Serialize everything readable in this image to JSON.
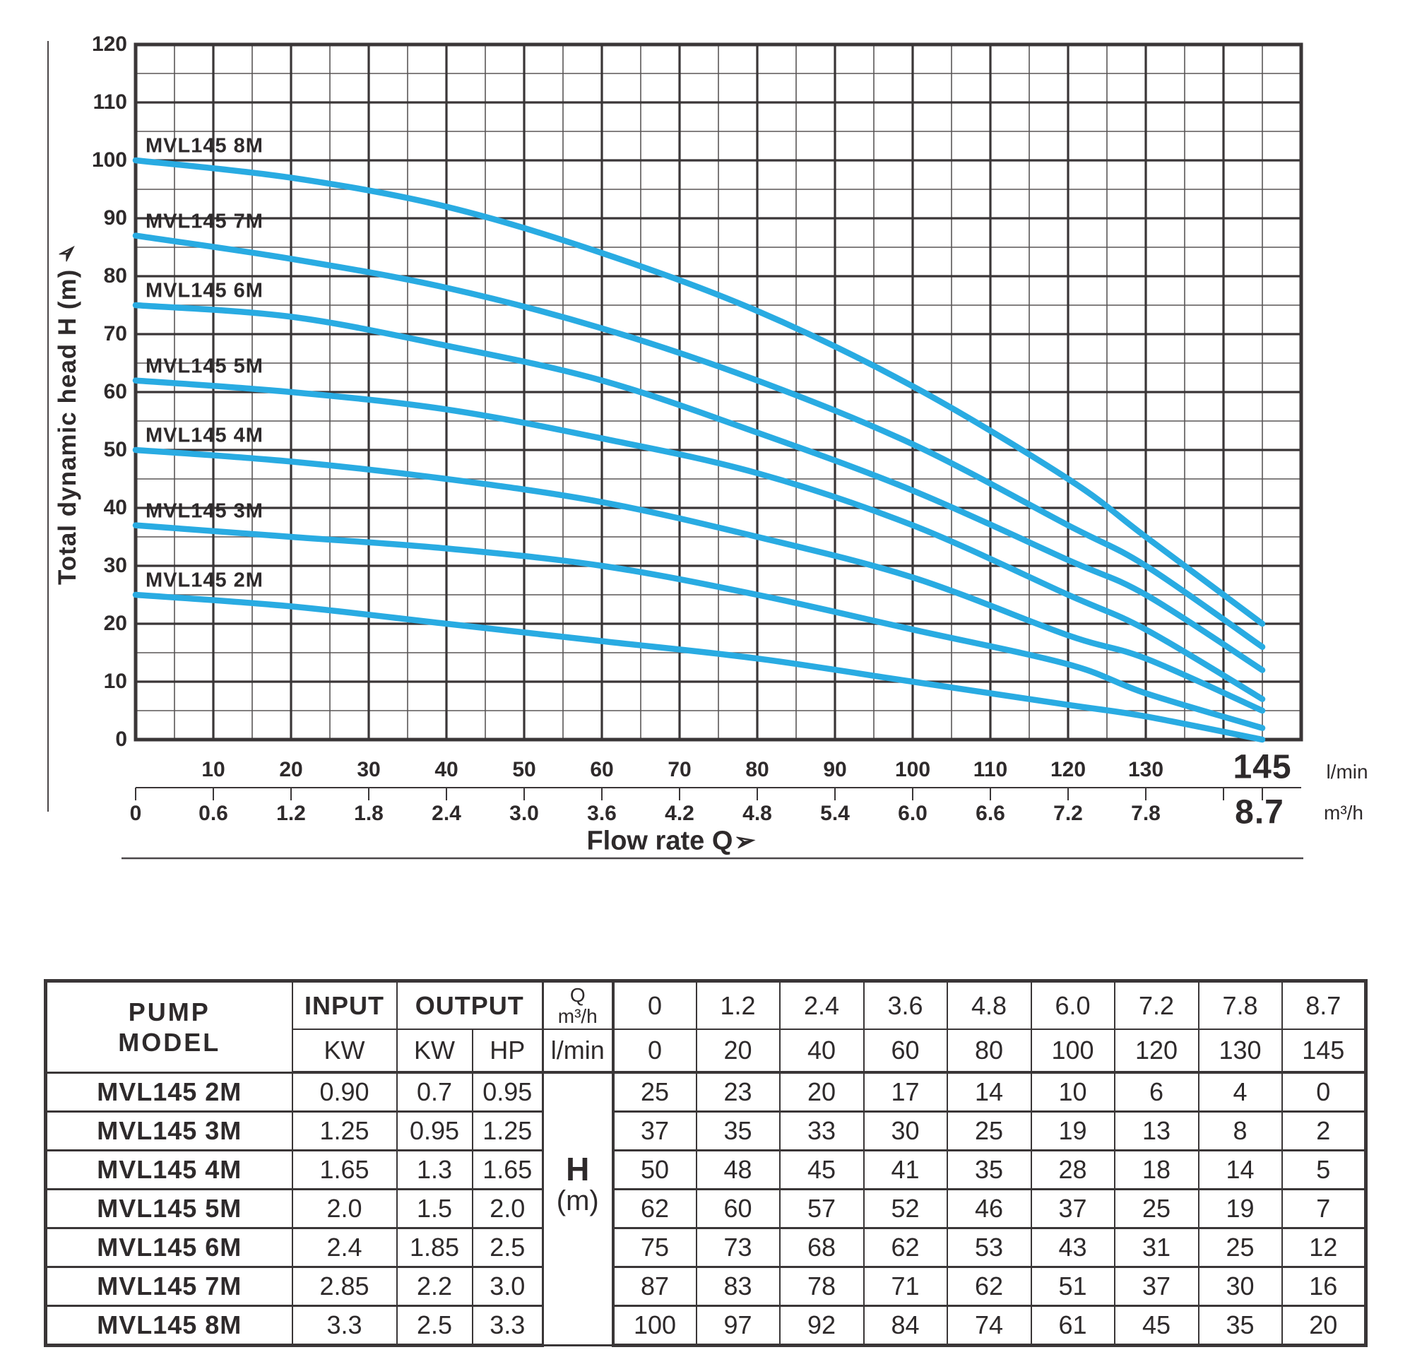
{
  "icons": {
    "axis_arrow": "➢"
  },
  "chart_data": {
    "type": "line",
    "title": "",
    "xlabel": "Flow rate Q",
    "ylabel": "Total dynamic head H (m)",
    "x_unit_primary": "l/min",
    "x_unit_secondary": "m³/h",
    "xlim_lmin": [
      0,
      150
    ],
    "ylim": [
      0,
      120
    ],
    "y_tick_step": 10,
    "grid_minor_step": 5,
    "grid": true,
    "line_color": "#29abe2",
    "x_lmin": [
      0,
      20,
      40,
      60,
      80,
      100,
      120,
      130,
      145
    ],
    "x_m3h": [
      0,
      1.2,
      2.4,
      3.6,
      4.8,
      6.0,
      7.2,
      7.8,
      8.7
    ],
    "x_tick_labels_lmin": [
      "10",
      "20",
      "30",
      "40",
      "50",
      "60",
      "70",
      "80",
      "90",
      "100",
      "110",
      "120",
      "130"
    ],
    "x_tick_values_lmin": [
      10,
      20,
      30,
      40,
      50,
      60,
      70,
      80,
      90,
      100,
      110,
      120,
      130
    ],
    "x_tick_labels_m3h": [
      "0",
      "0.6",
      "1.2",
      "1.8",
      "2.4",
      "3.0",
      "3.6",
      "4.2",
      "4.8",
      "5.4",
      "6.0",
      "6.6",
      "7.2",
      "7.8"
    ],
    "x_tick_values_m3h_lmin": [
      0,
      10,
      20,
      30,
      40,
      50,
      60,
      70,
      80,
      90,
      100,
      110,
      120,
      130
    ],
    "x_end_tick_lmin": "145",
    "x_end_tick_m3h": "8.7",
    "legend_position": "labels-at-curve-start",
    "series": [
      {
        "name": "MVL145 2M",
        "values": [
          25,
          23,
          20,
          17,
          14,
          10,
          6,
          4,
          0
        ]
      },
      {
        "name": "MVL145 3M",
        "values": [
          37,
          35,
          33,
          30,
          25,
          19,
          13,
          8,
          2
        ]
      },
      {
        "name": "MVL145 4M",
        "values": [
          50,
          48,
          45,
          41,
          35,
          28,
          18,
          14,
          5
        ]
      },
      {
        "name": "MVL145 5M",
        "values": [
          62,
          60,
          57,
          52,
          46,
          37,
          25,
          19,
          7
        ]
      },
      {
        "name": "MVL145 6M",
        "values": [
          75,
          73,
          68,
          62,
          53,
          43,
          31,
          25,
          12
        ]
      },
      {
        "name": "MVL145 7M",
        "values": [
          87,
          83,
          78,
          71,
          62,
          51,
          37,
          30,
          16
        ]
      },
      {
        "name": "MVL145 8M",
        "values": [
          100,
          97,
          92,
          84,
          74,
          61,
          45,
          35,
          20
        ]
      }
    ]
  },
  "table": {
    "header": {
      "pump_model": "PUMP\nMODEL",
      "input": "INPUT",
      "output": "OUTPUT",
      "input_kw": "KW",
      "output_kw": "KW",
      "output_hp": "HP",
      "q_symbol": "Q",
      "q_unit_m3h": "m³/h",
      "q_unit_lmin": "l/min",
      "q_m3h_values": [
        "0",
        "1.2",
        "2.4",
        "3.6",
        "4.8",
        "6.0",
        "7.2",
        "7.8",
        "8.7"
      ],
      "q_lmin_values": [
        "0",
        "20",
        "40",
        "60",
        "80",
        "100",
        "120",
        "130",
        "145"
      ]
    },
    "h_unit": {
      "symbol": "H",
      "unit": "(m)"
    },
    "rows": [
      {
        "model": "MVL145 2M",
        "input_kw": "0.90",
        "output_kw": "0.7",
        "output_hp": "0.95",
        "h_values": [
          "25",
          "23",
          "20",
          "17",
          "14",
          "10",
          "6",
          "4",
          "0"
        ]
      },
      {
        "model": "MVL145 3M",
        "input_kw": "1.25",
        "output_kw": "0.95",
        "output_hp": "1.25",
        "h_values": [
          "37",
          "35",
          "33",
          "30",
          "25",
          "19",
          "13",
          "8",
          "2"
        ]
      },
      {
        "model": "MVL145 4M",
        "input_kw": "1.65",
        "output_kw": "1.3",
        "output_hp": "1.65",
        "h_values": [
          "50",
          "48",
          "45",
          "41",
          "35",
          "28",
          "18",
          "14",
          "5"
        ]
      },
      {
        "model": "MVL145 5M",
        "input_kw": "2.0",
        "output_kw": "1.5",
        "output_hp": "2.0",
        "h_values": [
          "62",
          "60",
          "57",
          "52",
          "46",
          "37",
          "25",
          "19",
          "7"
        ]
      },
      {
        "model": "MVL145 6M",
        "input_kw": "2.4",
        "output_kw": "1.85",
        "output_hp": "2.5",
        "h_values": [
          "75",
          "73",
          "68",
          "62",
          "53",
          "43",
          "31",
          "25",
          "12"
        ]
      },
      {
        "model": "MVL145 7M",
        "input_kw": "2.85",
        "output_kw": "2.2",
        "output_hp": "3.0",
        "h_values": [
          "87",
          "83",
          "78",
          "71",
          "62",
          "51",
          "37",
          "30",
          "16"
        ]
      },
      {
        "model": "MVL145 8M",
        "input_kw": "3.3",
        "output_kw": "2.5",
        "output_hp": "3.3",
        "h_values": [
          "100",
          "97",
          "92",
          "84",
          "74",
          "61",
          "45",
          "35",
          "20"
        ]
      }
    ]
  }
}
